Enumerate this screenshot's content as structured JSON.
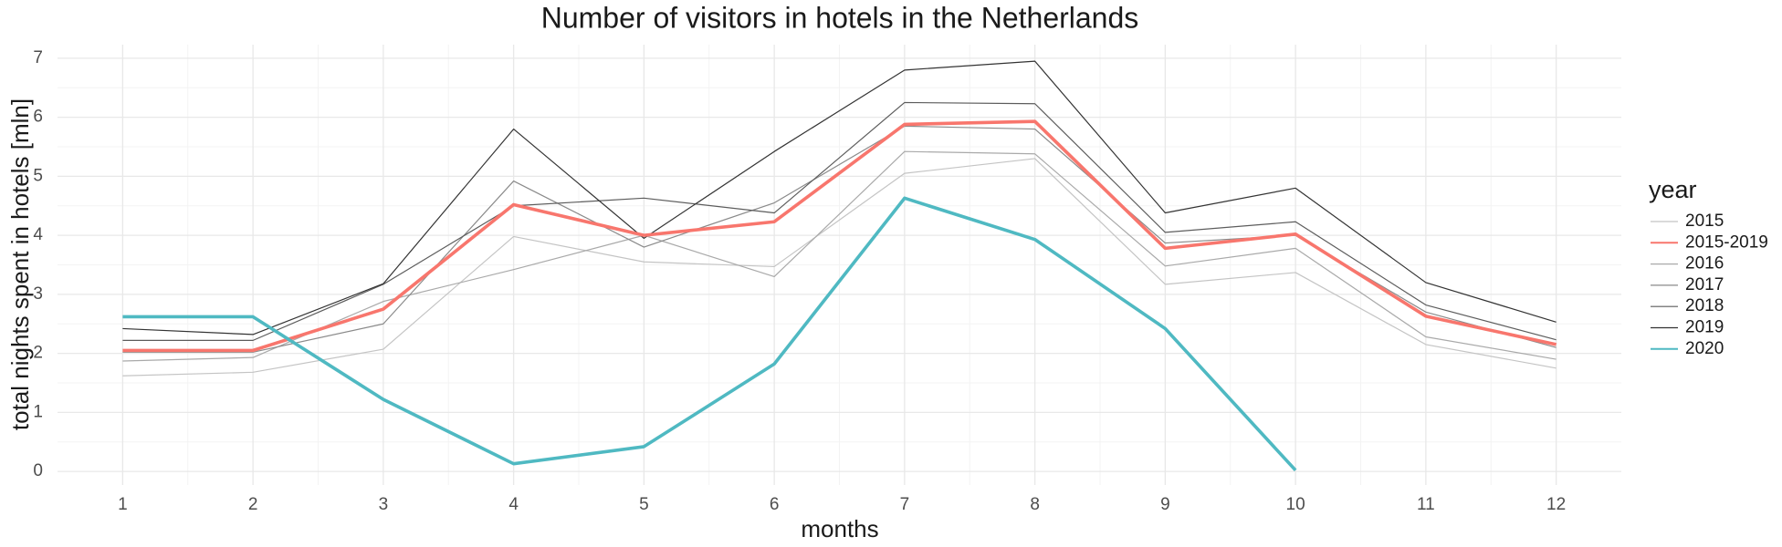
{
  "chart_data": {
    "type": "line",
    "title": "Number of visitors in hotels in the Netherlands",
    "x_label": "months",
    "y_label": "total nights spent in hotels [mln]",
    "legend_title": "year",
    "x": [
      1,
      2,
      3,
      4,
      5,
      6,
      7,
      8,
      9,
      10,
      11,
      12
    ],
    "xlim": [
      0.5,
      12.5
    ],
    "xticks": [
      1,
      2,
      3,
      4,
      5,
      6,
      7,
      8,
      9,
      10,
      11,
      12
    ],
    "ylim": [
      -0.23,
      7.23
    ],
    "yticks": [
      0,
      1,
      2,
      3,
      4,
      5,
      6,
      7
    ],
    "grid": true,
    "legend": "right",
    "series": [
      {
        "name": "2015",
        "color": "#c4c4c4",
        "values": [
          1.62,
          1.68,
          2.07,
          3.98,
          3.55,
          3.47,
          5.05,
          5.3,
          3.17,
          3.37,
          2.15,
          1.75
        ]
      },
      {
        "name": "2015-2019",
        "color": "#F8766D",
        "values": [
          2.05,
          2.05,
          2.75,
          4.52,
          4.0,
          4.23,
          5.88,
          5.93,
          3.78,
          4.02,
          2.63,
          2.15
        ]
      },
      {
        "name": "2016",
        "color": "#a9a9a9",
        "values": [
          1.87,
          1.93,
          2.88,
          3.42,
          4.0,
          3.3,
          5.42,
          5.38,
          3.48,
          3.78,
          2.28,
          1.9
        ]
      },
      {
        "name": "2017",
        "color": "#8a8a8a",
        "values": [
          2.02,
          2.02,
          2.5,
          4.92,
          3.8,
          4.55,
          5.85,
          5.8,
          3.87,
          4.0,
          2.7,
          2.1
        ]
      },
      {
        "name": "2018",
        "color": "#5c5c5c",
        "values": [
          2.22,
          2.22,
          3.17,
          4.5,
          4.63,
          4.38,
          6.25,
          6.23,
          4.05,
          4.23,
          2.82,
          2.23
        ]
      },
      {
        "name": "2019",
        "color": "#333333",
        "values": [
          2.42,
          2.32,
          3.18,
          5.8,
          3.95,
          5.42,
          6.8,
          6.95,
          4.38,
          4.8,
          3.2,
          2.53
        ]
      },
      {
        "name": "2020",
        "color": "#4fb9c2",
        "values": [
          2.62,
          2.62,
          1.22,
          0.13,
          0.42,
          1.82,
          4.63,
          3.93,
          2.42,
          0.02,
          null,
          null
        ]
      }
    ]
  }
}
